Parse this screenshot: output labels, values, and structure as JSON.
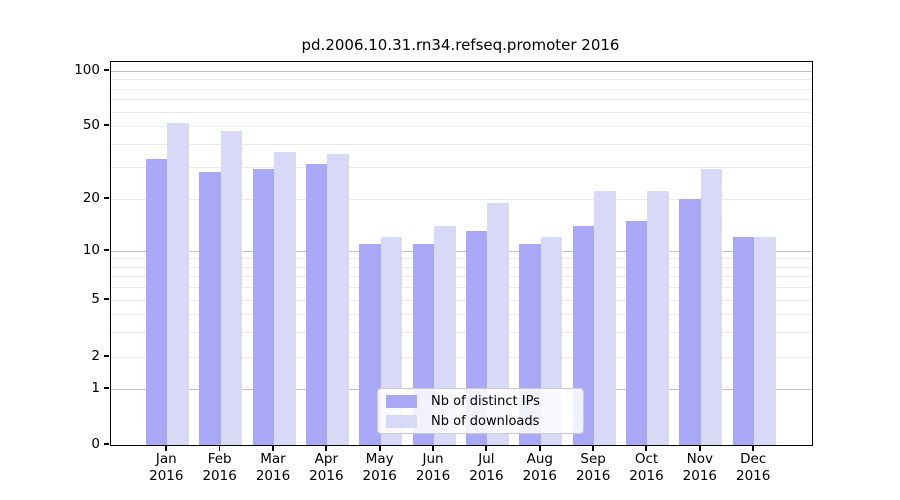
{
  "chart_data": {
    "type": "bar",
    "title": "pd.2006.10.31.rn34.refseq.promoter 2016",
    "months": [
      "Jan",
      "Feb",
      "Mar",
      "Apr",
      "May",
      "Jun",
      "Jul",
      "Aug",
      "Sep",
      "Oct",
      "Nov",
      "Dec"
    ],
    "year": "2016",
    "series": [
      {
        "name": "Nb of distinct IPs",
        "color": "#a8a8f6",
        "values": [
          33,
          28,
          29,
          31,
          11,
          11,
          13,
          11,
          14,
          15,
          20,
          12
        ]
      },
      {
        "name": "Nb of downloads",
        "color": "#d8d8f7",
        "values": [
          52,
          47,
          36,
          35,
          12,
          14,
          19,
          12,
          22,
          22,
          29,
          12
        ]
      }
    ],
    "yscale": "symlog",
    "yticks": [
      0,
      1,
      2,
      5,
      10,
      20,
      50,
      100
    ],
    "minor_gridline_values": [
      2,
      3,
      4,
      5,
      6,
      7,
      8,
      9,
      20,
      30,
      40,
      50,
      60,
      70,
      80,
      90
    ],
    "major_gridline_values": [
      1,
      10,
      100
    ],
    "ylim": [
      0,
      100
    ],
    "xlabel": "",
    "ylabel": "",
    "grid": true,
    "legend_position": "lower center"
  },
  "colors": {
    "distinct_ips_bar": "#a8a8f6",
    "downloads_bar": "#d8d8f7",
    "major_grid": "#c3c3c3",
    "minor_grid": "#ebebeb",
    "axis": "#000000",
    "legend_border": "#cccccc",
    "background": "#ffffff"
  }
}
